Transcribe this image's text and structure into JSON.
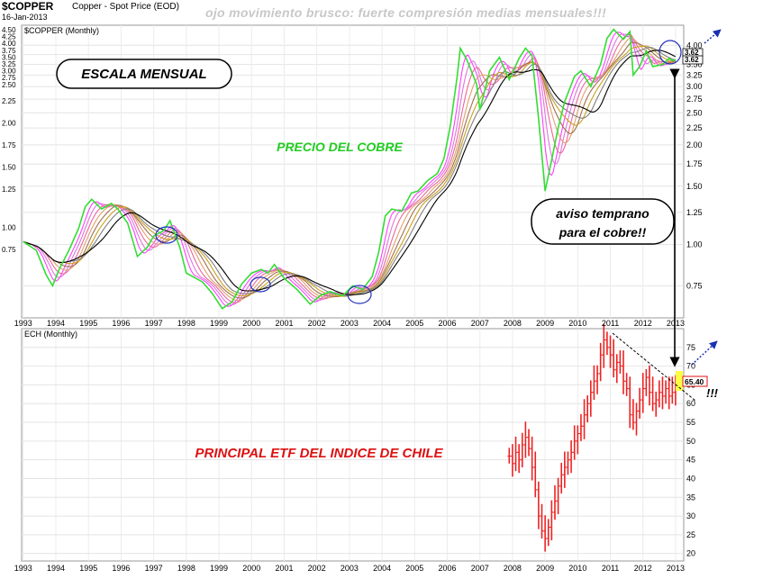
{
  "header": {
    "symbol": "$COPPER",
    "description": "Copper - Spot Price (EOD)",
    "date": "16-Jan-2013",
    "warning": "ojo movimiento brusco: fuerte compresión medias mensuales!!!"
  },
  "annotations": {
    "escala": "ESCALA MENSUAL",
    "precio": "PRECIO DEL COBRE",
    "aviso_line1": "aviso temprano",
    "aviso_line2": "para el cobre!!",
    "principal": "PRINCIPAL ETF DEL INDICE DE CHILE",
    "exclaim": "!!!"
  },
  "colors": {
    "price_line": "#33dd33",
    "ma_colors": [
      "#ff40ff",
      "#dd77dd",
      "#ee6699",
      "#e0a070",
      "#a07050",
      "#c9a020",
      "#808080",
      "#000000"
    ],
    "ech_bars": "#ee2222",
    "ech_last_label_bg": "#ffff44",
    "circles": "#2233bb",
    "aviso_text": "#000000",
    "precio_text": "#22cc22",
    "principal_text": "#dd1111"
  },
  "chart_data": [
    {
      "type": "line",
      "legend": "$COPPER (Monthly)",
      "y_scale": "log",
      "ylim": [
        0.6,
        4.6
      ],
      "y_ticks_left": [
        "4.50",
        "4.25",
        "4.00",
        "3.75",
        "3.50",
        "3.25",
        "3.00",
        "2.75",
        "2.50",
        "2.25",
        "2.00",
        "1.75",
        "1.50",
        "1.25",
        "1.00",
        "0.75"
      ],
      "y_ticks_right": [
        "4.00",
        "3.75",
        "3.50",
        "3.25",
        "3.00",
        "2.75",
        "2.50",
        "2.25",
        "2.00",
        "1.75",
        "1.50",
        "1.25",
        "1.00",
        "0.75"
      ],
      "x_ticks": [
        "1993",
        "1994",
        "1995",
        "1996",
        "1997",
        "1998",
        "1999",
        "2000",
        "2001",
        "2002",
        "2003",
        "2004",
        "2005",
        "2006",
        "2007",
        "2008",
        "2009",
        "2010",
        "2011",
        "2012",
        "2013"
      ],
      "last_value_labels": [
        "3.62",
        "3.62"
      ],
      "price": {
        "name": "$COPPER",
        "points": [
          [
            1993.0,
            1.02
          ],
          [
            1993.4,
            0.96
          ],
          [
            1993.7,
            0.81
          ],
          [
            1993.9,
            0.75
          ],
          [
            1994.1,
            0.84
          ],
          [
            1994.4,
            0.96
          ],
          [
            1994.7,
            1.12
          ],
          [
            1994.9,
            1.3
          ],
          [
            1995.1,
            1.37
          ],
          [
            1995.4,
            1.28
          ],
          [
            1995.7,
            1.33
          ],
          [
            1995.9,
            1.28
          ],
          [
            1996.2,
            1.16
          ],
          [
            1996.5,
            0.92
          ],
          [
            1996.8,
            0.98
          ],
          [
            1997.0,
            1.06
          ],
          [
            1997.3,
            1.1
          ],
          [
            1997.5,
            1.18
          ],
          [
            1997.8,
            0.98
          ],
          [
            1998.0,
            0.82
          ],
          [
            1998.5,
            0.77
          ],
          [
            1998.8,
            0.71
          ],
          [
            1999.1,
            0.64
          ],
          [
            1999.4,
            0.67
          ],
          [
            1999.7,
            0.76
          ],
          [
            2000.0,
            0.82
          ],
          [
            2000.3,
            0.84
          ],
          [
            2000.5,
            0.82
          ],
          [
            2000.7,
            0.87
          ],
          [
            2001.0,
            0.79
          ],
          [
            2001.4,
            0.73
          ],
          [
            2001.8,
            0.66
          ],
          [
            2002.1,
            0.7
          ],
          [
            2002.4,
            0.72
          ],
          [
            2002.8,
            0.7
          ],
          [
            2003.1,
            0.75
          ],
          [
            2003.4,
            0.73
          ],
          [
            2003.7,
            0.8
          ],
          [
            2003.9,
            0.95
          ],
          [
            2004.1,
            1.22
          ],
          [
            2004.3,
            1.28
          ],
          [
            2004.6,
            1.26
          ],
          [
            2004.9,
            1.43
          ],
          [
            2005.1,
            1.45
          ],
          [
            2005.4,
            1.56
          ],
          [
            2005.7,
            1.64
          ],
          [
            2005.9,
            1.82
          ],
          [
            2006.1,
            2.3
          ],
          [
            2006.3,
            3.2
          ],
          [
            2006.4,
            3.92
          ],
          [
            2006.6,
            3.62
          ],
          [
            2006.9,
            3.05
          ],
          [
            2007.0,
            2.55
          ],
          [
            2007.3,
            3.35
          ],
          [
            2007.6,
            3.68
          ],
          [
            2007.9,
            3.15
          ],
          [
            2008.2,
            3.65
          ],
          [
            2008.4,
            3.92
          ],
          [
            2008.6,
            3.72
          ],
          [
            2008.8,
            2.4
          ],
          [
            2009.0,
            1.45
          ],
          [
            2009.2,
            1.8
          ],
          [
            2009.4,
            2.25
          ],
          [
            2009.6,
            2.7
          ],
          [
            2009.9,
            3.22
          ],
          [
            2010.1,
            3.35
          ],
          [
            2010.4,
            3.0
          ],
          [
            2010.7,
            3.5
          ],
          [
            2010.9,
            4.2
          ],
          [
            2011.1,
            4.47
          ],
          [
            2011.4,
            4.17
          ],
          [
            2011.6,
            4.4
          ],
          [
            2011.7,
            3.25
          ],
          [
            2011.9,
            3.45
          ],
          [
            2012.1,
            3.85
          ],
          [
            2012.3,
            3.45
          ],
          [
            2012.6,
            3.5
          ],
          [
            2012.8,
            3.65
          ],
          [
            2012.9,
            3.6
          ],
          [
            2013.0,
            3.62
          ]
        ]
      }
    },
    {
      "type": "bar",
      "legend": "ECH (Monthly)",
      "ylim": [
        18,
        80
      ],
      "y_ticks": [
        "75",
        "70",
        "65",
        "60",
        "55",
        "50",
        "45",
        "40",
        "35",
        "30",
        "25",
        "20"
      ],
      "x_ticks": [
        "1993",
        "1994",
        "1995",
        "1996",
        "1997",
        "1998",
        "1999",
        "2000",
        "2001",
        "2002",
        "2003",
        "2004",
        "2005",
        "2006",
        "2007",
        "2008",
        "2009",
        "2010",
        "2011",
        "2012",
        "2013"
      ],
      "last_value_label": "65.40",
      "series": {
        "name": "ECH",
        "points": [
          [
            2007.9,
            46
          ],
          [
            2008.0,
            44
          ],
          [
            2008.1,
            47
          ],
          [
            2008.2,
            45
          ],
          [
            2008.3,
            49
          ],
          [
            2008.4,
            51
          ],
          [
            2008.5,
            48
          ],
          [
            2008.6,
            43
          ],
          [
            2008.7,
            37
          ],
          [
            2008.8,
            30
          ],
          [
            2008.9,
            26
          ],
          [
            2009.0,
            24
          ],
          [
            2009.1,
            27
          ],
          [
            2009.2,
            31
          ],
          [
            2009.3,
            34
          ],
          [
            2009.4,
            38
          ],
          [
            2009.5,
            41
          ],
          [
            2009.6,
            43
          ],
          [
            2009.7,
            45
          ],
          [
            2009.8,
            47
          ],
          [
            2009.9,
            50
          ],
          [
            2010.0,
            52
          ],
          [
            2010.1,
            54
          ],
          [
            2010.2,
            57
          ],
          [
            2010.3,
            60
          ],
          [
            2010.4,
            63
          ],
          [
            2010.5,
            66
          ],
          [
            2010.6,
            68
          ],
          [
            2010.7,
            73
          ],
          [
            2010.8,
            77
          ],
          [
            2010.9,
            75
          ],
          [
            2011.0,
            73
          ],
          [
            2011.1,
            69
          ],
          [
            2011.2,
            71
          ],
          [
            2011.3,
            70
          ],
          [
            2011.4,
            66
          ],
          [
            2011.5,
            64
          ],
          [
            2011.6,
            57
          ],
          [
            2011.7,
            55
          ],
          [
            2011.8,
            58
          ],
          [
            2011.9,
            61
          ],
          [
            2012.0,
            64
          ],
          [
            2012.1,
            67
          ],
          [
            2012.2,
            63
          ],
          [
            2012.3,
            60
          ],
          [
            2012.4,
            61
          ],
          [
            2012.5,
            63
          ],
          [
            2012.6,
            62
          ],
          [
            2012.7,
            64
          ],
          [
            2012.8,
            62
          ],
          [
            2012.9,
            63
          ],
          [
            2013.0,
            65.4
          ]
        ]
      }
    }
  ]
}
